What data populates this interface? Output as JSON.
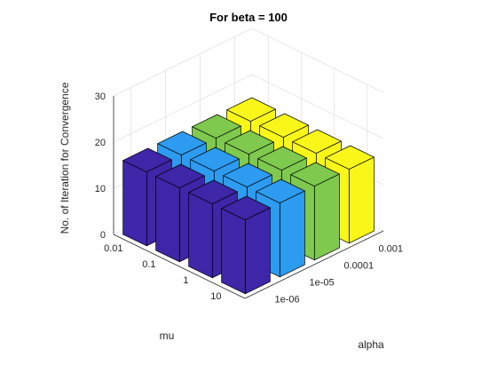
{
  "chart_data": {
    "type": "bar3d",
    "title": "For beta = 100",
    "xlabel": "alpha",
    "ylabel": "mu",
    "zlabel": "No. of Iteration for Convergence",
    "alpha_ticks": [
      "1e-06",
      "1e-05",
      "0.0001",
      "0.001"
    ],
    "mu_ticks": [
      "0.01",
      "0.1",
      "1",
      "10"
    ],
    "z_ticks": [
      "0",
      "10",
      "20",
      "30"
    ],
    "zlim": [
      0,
      30
    ],
    "grid": true,
    "series_colors": [
      "#3e26a8",
      "#2d9bef",
      "#7ec94e",
      "#f9f71a"
    ],
    "values": [
      [
        16,
        16,
        16,
        16
      ],
      [
        16,
        16,
        16,
        16
      ],
      [
        16,
        16,
        16,
        16
      ],
      [
        16,
        16,
        16,
        16
      ]
    ]
  }
}
